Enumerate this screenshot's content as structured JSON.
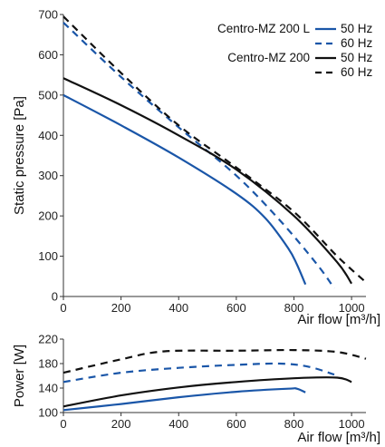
{
  "colors": {
    "blue": "#1a56a8",
    "black": "#111111"
  },
  "legend": {
    "model_a": "Centro-MZ 200 L",
    "model_b": "Centro-MZ 200",
    "f50": "50 Hz",
    "f60": "60 Hz"
  },
  "chart_data": [
    {
      "type": "line",
      "ylabel": "Static pressure [Pa]",
      "xlabel": "Air flow [m³/h]",
      "xlim": [
        0,
        1050
      ],
      "ylim": [
        0,
        700
      ],
      "xticks": [
        0,
        200,
        400,
        600,
        800,
        1000
      ],
      "yticks": [
        0,
        100,
        200,
        300,
        400,
        500,
        600,
        700
      ],
      "grid": false,
      "legend_position": "top-right",
      "series": [
        {
          "name": "Centro-MZ 200 L 50 Hz",
          "color": "blue",
          "style": "solid",
          "points": [
            [
              0,
              500
            ],
            [
              200,
              425
            ],
            [
              400,
              345
            ],
            [
              600,
              255
            ],
            [
              700,
              195
            ],
            [
              780,
              120
            ],
            [
              810,
              80
            ],
            [
              840,
              30
            ]
          ]
        },
        {
          "name": "Centro-MZ 200 L 60 Hz",
          "color": "blue",
          "style": "dashed",
          "points": [
            [
              0,
              680
            ],
            [
              200,
              545
            ],
            [
              400,
              420
            ],
            [
              600,
              300
            ],
            [
              750,
              190
            ],
            [
              880,
              80
            ],
            [
              940,
              20
            ]
          ]
        },
        {
          "name": "Centro-MZ 200 50 Hz",
          "color": "black",
          "style": "solid",
          "points": [
            [
              0,
              542
            ],
            [
              200,
              475
            ],
            [
              400,
              400
            ],
            [
              600,
              315
            ],
            [
              800,
              200
            ],
            [
              950,
              85
            ],
            [
              1000,
              32
            ]
          ]
        },
        {
          "name": "Centro-MZ 200 60 Hz",
          "color": "black",
          "style": "dashed",
          "points": [
            [
              0,
              695
            ],
            [
              200,
              555
            ],
            [
              400,
              425
            ],
            [
              600,
              320
            ],
            [
              800,
              210
            ],
            [
              950,
              100
            ],
            [
              1050,
              35
            ]
          ]
        }
      ]
    },
    {
      "type": "line",
      "ylabel": "Power [W]",
      "xlabel": "Air flow [m³/h]",
      "xlim": [
        0,
        1050
      ],
      "ylim": [
        100,
        220
      ],
      "xticks": [
        0,
        200,
        400,
        600,
        800,
        1000
      ],
      "yticks": [
        100,
        140,
        180,
        220
      ],
      "grid": false,
      "series": [
        {
          "name": "Centro-MZ 200 L 50 Hz",
          "color": "blue",
          "style": "solid",
          "points": [
            [
              0,
              104
            ],
            [
              200,
              114
            ],
            [
              400,
              125
            ],
            [
              600,
              134
            ],
            [
              780,
              139
            ],
            [
              810,
              139
            ],
            [
              840,
              133
            ]
          ]
        },
        {
          "name": "Centro-MZ 200 L 60 Hz",
          "color": "blue",
          "style": "dashed",
          "points": [
            [
              0,
              150
            ],
            [
              200,
              165
            ],
            [
              400,
              173
            ],
            [
              600,
              178
            ],
            [
              750,
              180
            ],
            [
              850,
              175
            ],
            [
              940,
              162
            ]
          ]
        },
        {
          "name": "Centro-MZ 200 50 Hz",
          "color": "black",
          "style": "solid",
          "points": [
            [
              0,
              110
            ],
            [
              200,
              128
            ],
            [
              400,
              141
            ],
            [
              600,
              150
            ],
            [
              800,
              156
            ],
            [
              950,
              157
            ],
            [
              1000,
              150
            ]
          ]
        },
        {
          "name": "Centro-MZ 200 60 Hz",
          "color": "black",
          "style": "dashed",
          "points": [
            [
              0,
              165
            ],
            [
              200,
              187
            ],
            [
              350,
              200
            ],
            [
              600,
              201
            ],
            [
              800,
              202
            ],
            [
              950,
              199
            ],
            [
              1050,
              188
            ]
          ]
        }
      ]
    }
  ]
}
